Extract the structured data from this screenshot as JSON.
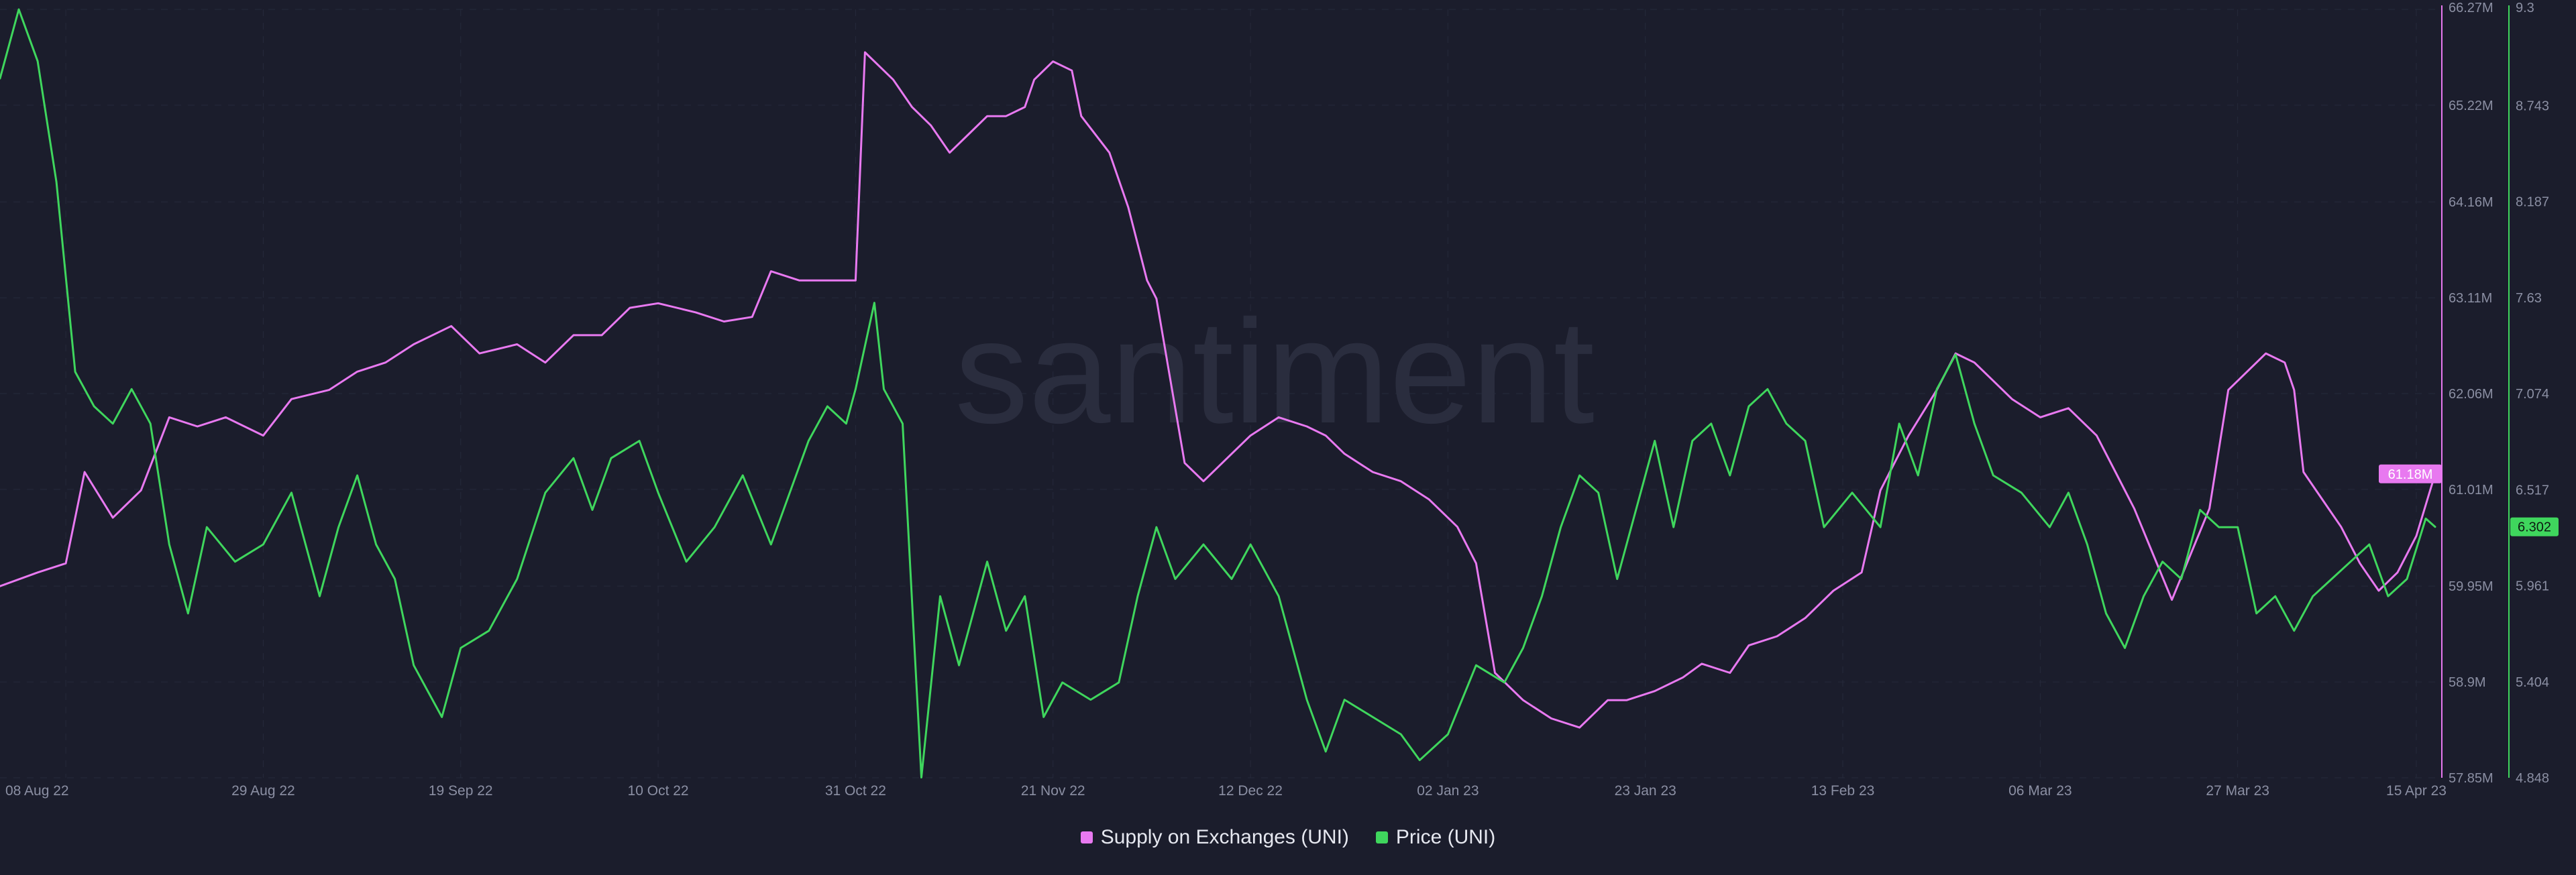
{
  "watermark": "santiment",
  "chart_data": {
    "type": "line",
    "grid": true,
    "legend_position": "bottom-center",
    "x_range": [
      "2022-08-01",
      "2023-04-17"
    ],
    "x_ticks": [
      {
        "date": "2022-08-08",
        "label": "08 Aug 22"
      },
      {
        "date": "2022-08-29",
        "label": "29 Aug 22"
      },
      {
        "date": "2022-09-19",
        "label": "19 Sep 22"
      },
      {
        "date": "2022-10-10",
        "label": "10 Oct 22"
      },
      {
        "date": "2022-10-31",
        "label": "31 Oct 22"
      },
      {
        "date": "2022-11-21",
        "label": "21 Nov 22"
      },
      {
        "date": "2022-12-12",
        "label": "12 Dec 22"
      },
      {
        "date": "2023-01-02",
        "label": "02 Jan 23"
      },
      {
        "date": "2023-01-23",
        "label": "23 Jan 23"
      },
      {
        "date": "2023-02-13",
        "label": "13 Feb 23"
      },
      {
        "date": "2023-03-06",
        "label": "06 Mar 23"
      },
      {
        "date": "2023-03-27",
        "label": "27 Mar 23"
      },
      {
        "date": "2023-04-15",
        "label": "15 Apr 23"
      }
    ],
    "axes": {
      "supply": {
        "ylim": [
          57.85,
          66.27
        ],
        "ticks": [
          "66.27M",
          "65.22M",
          "64.16M",
          "63.11M",
          "62.06M",
          "61.01M",
          "59.95M",
          "58.9M",
          "57.85M"
        ],
        "tick_values": [
          66.27,
          65.22,
          64.16,
          63.11,
          62.06,
          61.01,
          59.95,
          58.9,
          57.85
        ],
        "color": "#e879f0"
      },
      "price": {
        "ylim": [
          4.848,
          9.3
        ],
        "ticks": [
          "9.3",
          "8.743",
          "8.187",
          "7.63",
          "7.074",
          "6.517",
          "5.961",
          "5.404",
          "4.848"
        ],
        "tick_values": [
          9.3,
          8.743,
          8.187,
          7.63,
          7.074,
          6.517,
          5.961,
          5.404,
          4.848
        ],
        "color": "#3fd65d"
      }
    },
    "series": [
      {
        "name": "Supply on Exchanges (UNI)",
        "axis": "supply",
        "color": "#e879f0",
        "last_label": "61.18M",
        "points": [
          [
            "2022-08-01",
            59.95
          ],
          [
            "2022-08-05",
            60.1
          ],
          [
            "2022-08-08",
            60.2
          ],
          [
            "2022-08-10",
            61.2
          ],
          [
            "2022-08-13",
            60.7
          ],
          [
            "2022-08-16",
            61.0
          ],
          [
            "2022-08-19",
            61.8
          ],
          [
            "2022-08-22",
            61.7
          ],
          [
            "2022-08-25",
            61.8
          ],
          [
            "2022-08-29",
            61.6
          ],
          [
            "2022-09-01",
            62.0
          ],
          [
            "2022-09-05",
            62.1
          ],
          [
            "2022-09-08",
            62.3
          ],
          [
            "2022-09-11",
            62.4
          ],
          [
            "2022-09-14",
            62.6
          ],
          [
            "2022-09-18",
            62.8
          ],
          [
            "2022-09-21",
            62.5
          ],
          [
            "2022-09-25",
            62.6
          ],
          [
            "2022-09-28",
            62.4
          ],
          [
            "2022-10-01",
            62.7
          ],
          [
            "2022-10-04",
            62.7
          ],
          [
            "2022-10-07",
            63.0
          ],
          [
            "2022-10-10",
            63.05
          ],
          [
            "2022-10-14",
            62.95
          ],
          [
            "2022-10-17",
            62.85
          ],
          [
            "2022-10-20",
            62.9
          ],
          [
            "2022-10-22",
            63.4
          ],
          [
            "2022-10-25",
            63.3
          ],
          [
            "2022-10-28",
            63.3
          ],
          [
            "2022-10-31",
            63.3
          ],
          [
            "2022-11-01",
            65.8
          ],
          [
            "2022-11-02",
            65.7
          ],
          [
            "2022-11-04",
            65.5
          ],
          [
            "2022-11-06",
            65.2
          ],
          [
            "2022-11-08",
            65.0
          ],
          [
            "2022-11-10",
            64.7
          ],
          [
            "2022-11-12",
            64.9
          ],
          [
            "2022-11-14",
            65.1
          ],
          [
            "2022-11-16",
            65.1
          ],
          [
            "2022-11-18",
            65.2
          ],
          [
            "2022-11-19",
            65.5
          ],
          [
            "2022-11-21",
            65.7
          ],
          [
            "2022-11-23",
            65.6
          ],
          [
            "2022-11-24",
            65.1
          ],
          [
            "2022-11-27",
            64.7
          ],
          [
            "2022-11-29",
            64.1
          ],
          [
            "2022-12-01",
            63.3
          ],
          [
            "2022-12-02",
            63.1
          ],
          [
            "2022-12-05",
            61.3
          ],
          [
            "2022-12-07",
            61.1
          ],
          [
            "2022-12-10",
            61.4
          ],
          [
            "2022-12-12",
            61.6
          ],
          [
            "2022-12-15",
            61.8
          ],
          [
            "2022-12-18",
            61.7
          ],
          [
            "2022-12-20",
            61.6
          ],
          [
            "2022-12-22",
            61.4
          ],
          [
            "2022-12-25",
            61.2
          ],
          [
            "2022-12-28",
            61.1
          ],
          [
            "2022-12-31",
            60.9
          ],
          [
            "2023-01-03",
            60.6
          ],
          [
            "2023-01-05",
            60.2
          ],
          [
            "2023-01-07",
            59.0
          ],
          [
            "2023-01-10",
            58.7
          ],
          [
            "2023-01-13",
            58.5
          ],
          [
            "2023-01-16",
            58.4
          ],
          [
            "2023-01-19",
            58.7
          ],
          [
            "2023-01-21",
            58.7
          ],
          [
            "2023-01-24",
            58.8
          ],
          [
            "2023-01-27",
            58.95
          ],
          [
            "2023-01-29",
            59.1
          ],
          [
            "2023-02-01",
            59.0
          ],
          [
            "2023-02-03",
            59.3
          ],
          [
            "2023-02-06",
            59.4
          ],
          [
            "2023-02-09",
            59.6
          ],
          [
            "2023-02-12",
            59.9
          ],
          [
            "2023-02-15",
            60.1
          ],
          [
            "2023-02-17",
            61.0
          ],
          [
            "2023-02-20",
            61.6
          ],
          [
            "2023-02-23",
            62.1
          ],
          [
            "2023-02-25",
            62.5
          ],
          [
            "2023-02-27",
            62.4
          ],
          [
            "2023-03-01",
            62.2
          ],
          [
            "2023-03-03",
            62.0
          ],
          [
            "2023-03-06",
            61.8
          ],
          [
            "2023-03-09",
            61.9
          ],
          [
            "2023-03-12",
            61.6
          ],
          [
            "2023-03-14",
            61.2
          ],
          [
            "2023-03-16",
            60.8
          ],
          [
            "2023-03-18",
            60.3
          ],
          [
            "2023-03-20",
            59.8
          ],
          [
            "2023-03-22",
            60.3
          ],
          [
            "2023-03-24",
            60.8
          ],
          [
            "2023-03-26",
            62.1
          ],
          [
            "2023-03-28",
            62.3
          ],
          [
            "2023-03-30",
            62.5
          ],
          [
            "2023-04-01",
            62.4
          ],
          [
            "2023-04-02",
            62.1
          ],
          [
            "2023-04-03",
            61.2
          ],
          [
            "2023-04-05",
            60.9
          ],
          [
            "2023-04-07",
            60.6
          ],
          [
            "2023-04-09",
            60.2
          ],
          [
            "2023-04-11",
            59.9
          ],
          [
            "2023-04-13",
            60.1
          ],
          [
            "2023-04-15",
            60.5
          ],
          [
            "2023-04-17",
            61.18
          ]
        ]
      },
      {
        "name": "Price (UNI)",
        "axis": "price",
        "color": "#3fd65d",
        "last_label": "6.302",
        "points": [
          [
            "2022-08-01",
            8.9
          ],
          [
            "2022-08-03",
            9.3
          ],
          [
            "2022-08-05",
            9.0
          ],
          [
            "2022-08-07",
            8.3
          ],
          [
            "2022-08-09",
            7.2
          ],
          [
            "2022-08-11",
            7.0
          ],
          [
            "2022-08-13",
            6.9
          ],
          [
            "2022-08-15",
            7.1
          ],
          [
            "2022-08-17",
            6.9
          ],
          [
            "2022-08-19",
            6.2
          ],
          [
            "2022-08-21",
            5.8
          ],
          [
            "2022-08-23",
            6.3
          ],
          [
            "2022-08-26",
            6.1
          ],
          [
            "2022-08-29",
            6.2
          ],
          [
            "2022-09-01",
            6.5
          ],
          [
            "2022-09-04",
            5.9
          ],
          [
            "2022-09-06",
            6.3
          ],
          [
            "2022-09-08",
            6.6
          ],
          [
            "2022-09-10",
            6.2
          ],
          [
            "2022-09-12",
            6.0
          ],
          [
            "2022-09-14",
            5.5
          ],
          [
            "2022-09-17",
            5.2
          ],
          [
            "2022-09-19",
            5.6
          ],
          [
            "2022-09-22",
            5.7
          ],
          [
            "2022-09-25",
            6.0
          ],
          [
            "2022-09-28",
            6.5
          ],
          [
            "2022-10-01",
            6.7
          ],
          [
            "2022-10-03",
            6.4
          ],
          [
            "2022-10-05",
            6.7
          ],
          [
            "2022-10-08",
            6.8
          ],
          [
            "2022-10-10",
            6.5
          ],
          [
            "2022-10-13",
            6.1
          ],
          [
            "2022-10-16",
            6.3
          ],
          [
            "2022-10-19",
            6.6
          ],
          [
            "2022-10-22",
            6.2
          ],
          [
            "2022-10-24",
            6.5
          ],
          [
            "2022-10-26",
            6.8
          ],
          [
            "2022-10-28",
            7.0
          ],
          [
            "2022-10-30",
            6.9
          ],
          [
            "2022-10-31",
            7.1
          ],
          [
            "2022-11-02",
            7.6
          ],
          [
            "2022-11-03",
            7.1
          ],
          [
            "2022-11-05",
            6.9
          ],
          [
            "2022-11-07",
            4.85
          ],
          [
            "2022-11-09",
            5.9
          ],
          [
            "2022-11-11",
            5.5
          ],
          [
            "2022-11-14",
            6.1
          ],
          [
            "2022-11-16",
            5.7
          ],
          [
            "2022-11-18",
            5.9
          ],
          [
            "2022-11-20",
            5.2
          ],
          [
            "2022-11-22",
            5.4
          ],
          [
            "2022-11-25",
            5.3
          ],
          [
            "2022-11-28",
            5.4
          ],
          [
            "2022-11-30",
            5.9
          ],
          [
            "2022-12-02",
            6.3
          ],
          [
            "2022-12-04",
            6.0
          ],
          [
            "2022-12-07",
            6.2
          ],
          [
            "2022-12-10",
            6.0
          ],
          [
            "2022-12-12",
            6.2
          ],
          [
            "2022-12-15",
            5.9
          ],
          [
            "2022-12-18",
            5.3
          ],
          [
            "2022-12-20",
            5.0
          ],
          [
            "2022-12-22",
            5.3
          ],
          [
            "2022-12-25",
            5.2
          ],
          [
            "2022-12-28",
            5.1
          ],
          [
            "2022-12-30",
            4.95
          ],
          [
            "2023-01-02",
            5.1
          ],
          [
            "2023-01-05",
            5.5
          ],
          [
            "2023-01-08",
            5.4
          ],
          [
            "2023-01-10",
            5.6
          ],
          [
            "2023-01-12",
            5.9
          ],
          [
            "2023-01-14",
            6.3
          ],
          [
            "2023-01-16",
            6.6
          ],
          [
            "2023-01-18",
            6.5
          ],
          [
            "2023-01-20",
            6.0
          ],
          [
            "2023-01-22",
            6.4
          ],
          [
            "2023-01-24",
            6.8
          ],
          [
            "2023-01-26",
            6.3
          ],
          [
            "2023-01-28",
            6.8
          ],
          [
            "2023-01-30",
            6.9
          ],
          [
            "2023-02-01",
            6.6
          ],
          [
            "2023-02-03",
            7.0
          ],
          [
            "2023-02-05",
            7.1
          ],
          [
            "2023-02-07",
            6.9
          ],
          [
            "2023-02-09",
            6.8
          ],
          [
            "2023-02-11",
            6.3
          ],
          [
            "2023-02-14",
            6.5
          ],
          [
            "2023-02-17",
            6.3
          ],
          [
            "2023-02-19",
            6.9
          ],
          [
            "2023-02-21",
            6.6
          ],
          [
            "2023-02-23",
            7.1
          ],
          [
            "2023-02-25",
            7.3
          ],
          [
            "2023-02-27",
            6.9
          ],
          [
            "2023-03-01",
            6.6
          ],
          [
            "2023-03-04",
            6.5
          ],
          [
            "2023-03-07",
            6.3
          ],
          [
            "2023-03-09",
            6.5
          ],
          [
            "2023-03-11",
            6.2
          ],
          [
            "2023-03-13",
            5.8
          ],
          [
            "2023-03-15",
            5.6
          ],
          [
            "2023-03-17",
            5.9
          ],
          [
            "2023-03-19",
            6.1
          ],
          [
            "2023-03-21",
            6.0
          ],
          [
            "2023-03-23",
            6.4
          ],
          [
            "2023-03-25",
            6.3
          ],
          [
            "2023-03-27",
            6.3
          ],
          [
            "2023-03-29",
            5.8
          ],
          [
            "2023-03-31",
            5.9
          ],
          [
            "2023-04-02",
            5.7
          ],
          [
            "2023-04-04",
            5.9
          ],
          [
            "2023-04-06",
            6.0
          ],
          [
            "2023-04-08",
            6.1
          ],
          [
            "2023-04-10",
            6.2
          ],
          [
            "2023-04-12",
            5.9
          ],
          [
            "2023-04-14",
            6.0
          ],
          [
            "2023-04-16",
            6.35
          ],
          [
            "2023-04-17",
            6.302
          ]
        ]
      }
    ]
  },
  "colors": {
    "background": "#1b1d2c",
    "grid": "#262a3b",
    "tick_text": "#8b8fa3",
    "legend_text": "#e6e8f0",
    "watermark": "#2a2d3e"
  }
}
